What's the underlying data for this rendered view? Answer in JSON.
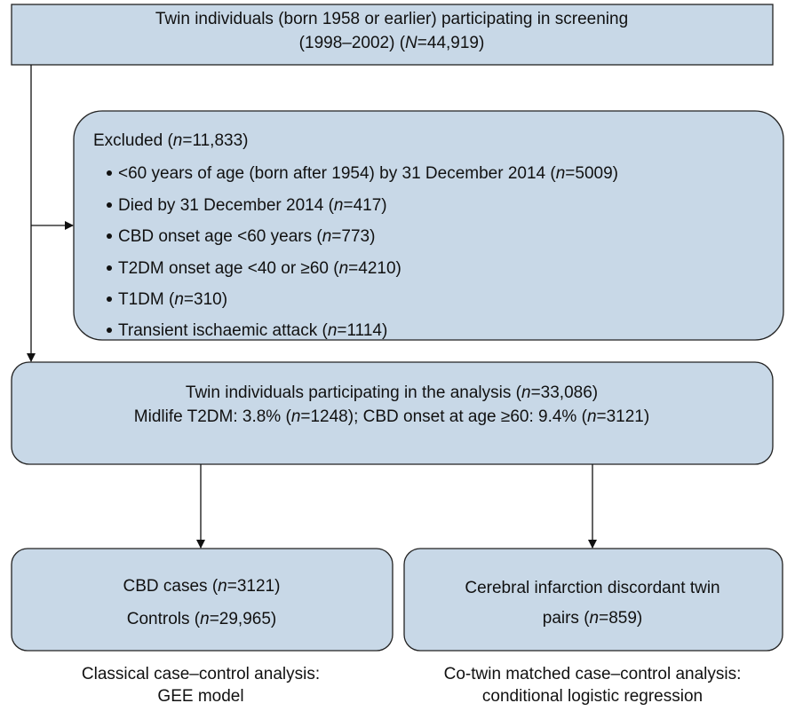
{
  "nodes": [
    {
      "lines": [
        [
          "Twin individuals (born 1958 or earlier) participating in screening"
        ],
        [
          "(1998–2002) (",
          "N",
          "=44,919)"
        ]
      ]
    },
    {
      "title": [
        "Excluded (",
        "n",
        "=11,833)"
      ],
      "items": [
        [
          "<60 years of age (born after 1954) by 31 December 2014 (",
          "n",
          "=5009)"
        ],
        [
          "Died by 31 December 2014 (",
          "n",
          "=417)"
        ],
        [
          "CBD onset age <60 years (",
          "n",
          "=773)"
        ],
        [
          "T2DM onset age <40 or ≥60 (",
          "n",
          "=4210)"
        ],
        [
          "T1DM (",
          "n",
          "=310)"
        ],
        [
          "Transient ischaemic attack (",
          "n",
          "=1114)"
        ]
      ]
    },
    {
      "lines": [
        [
          "Twin individuals participating in the analysis (",
          "n",
          "=33,086)"
        ],
        [
          "Midlife T2DM: 3.8% (",
          "n",
          "=1248); CBD onset at age ≥60: 9.4% (",
          "n",
          "=3121)"
        ]
      ]
    },
    {
      "lines": [
        [
          "CBD cases (",
          "n",
          "=3121)"
        ],
        [
          "Controls (",
          "n",
          "=29,965)"
        ]
      ]
    },
    {
      "lines": [
        [
          "Cerebral infarction discordant twin"
        ],
        [
          "pairs (",
          "n",
          "=859)"
        ]
      ]
    }
  ],
  "captions": [
    {
      "lines": [
        "Classical case–control analysis:",
        "GEE model"
      ]
    },
    {
      "lines": [
        "Co-twin matched case–control analysis:",
        "conditional logistic regression"
      ]
    }
  ]
}
